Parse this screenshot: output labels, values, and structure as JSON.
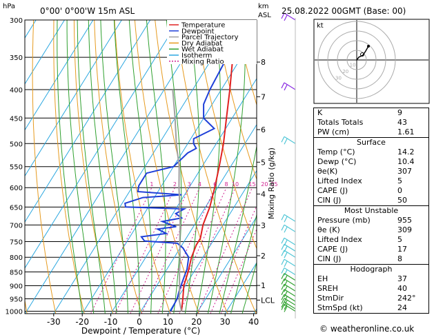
{
  "header": {
    "location": "0°00' 0°00'W 15m ASL",
    "hpa_unit": "hPa",
    "km_unit": "km",
    "asl_unit": "ASL",
    "datetime": "25.08.2022 00GMT (Base: 00)"
  },
  "chart_data": {
    "type": "line",
    "title": "",
    "xlabel": "Dewpoint / Temperature (°C)",
    "ylabel": "Mixing Ratio (g/kg)",
    "x_ticks": [
      "-30",
      "-20",
      "-10",
      "0",
      "10",
      "20",
      "30",
      "40"
    ],
    "xlim": [
      -35,
      40
    ],
    "pressure_levels": [
      "300",
      "350",
      "400",
      "450",
      "500",
      "550",
      "600",
      "650",
      "700",
      "750",
      "800",
      "850",
      "900",
      "950",
      "1000"
    ],
    "ylim_hpa": [
      300,
      1010
    ],
    "km_ticks": [
      {
        "label": "8",
        "p": 357
      },
      {
        "label": "7",
        "p": 412
      },
      {
        "label": "6",
        "p": 472
      },
      {
        "label": "5",
        "p": 540
      },
      {
        "label": "4",
        "p": 616
      },
      {
        "label": "3",
        "p": 701
      },
      {
        "label": "2",
        "p": 795
      },
      {
        "label": "1",
        "p": 899
      },
      {
        "label": "LCL",
        "p": 955
      }
    ],
    "mixing_ratio_labels": [
      "1",
      "2",
      "3",
      "4",
      "6",
      "8",
      "10",
      "15",
      "20",
      "25"
    ],
    "legend": [
      {
        "name": "Temperature",
        "color": "#e02020"
      },
      {
        "name": "Dewpoint",
        "color": "#1e3fd8"
      },
      {
        "name": "Parcel Trajectory",
        "color": "#a0a0a0"
      },
      {
        "name": "Dry Adiabat",
        "color": "#e69a1e"
      },
      {
        "name": "Wet Adiabat",
        "color": "#2ea02e"
      },
      {
        "name": "Isotherm",
        "color": "#2aa7e0"
      },
      {
        "name": "Mixing Ratio",
        "color": "#d02090"
      }
    ],
    "series": [
      {
        "name": "Temperature",
        "color": "#e02020",
        "points": [
          [
            14.2,
            1000
          ],
          [
            12,
            950
          ],
          [
            9.5,
            900
          ],
          [
            8,
            850
          ],
          [
            6,
            800
          ],
          [
            5,
            760
          ],
          [
            5,
            740
          ],
          [
            3,
            700
          ],
          [
            1.5,
            650
          ],
          [
            -1,
            600
          ],
          [
            -4,
            550
          ],
          [
            -7.5,
            500
          ],
          [
            -12,
            450
          ],
          [
            -17,
            400
          ],
          [
            -23,
            350
          ],
          [
            -30,
            300
          ]
        ]
      },
      {
        "name": "Dewpoint",
        "color": "#1e3fd8",
        "points": [
          [
            10.4,
            1000
          ],
          [
            10,
            950
          ],
          [
            9,
            920
          ],
          [
            8,
            880
          ],
          [
            7,
            840
          ],
          [
            5,
            800
          ],
          [
            1,
            770
          ],
          [
            -2,
            755
          ],
          [
            -14,
            748
          ],
          [
            -16,
            735
          ],
          [
            -8,
            725
          ],
          [
            -12,
            712
          ],
          [
            -6,
            705
          ],
          [
            -12,
            690
          ],
          [
            -6,
            680
          ],
          [
            -9,
            668
          ],
          [
            -7,
            655
          ],
          [
            -28,
            650
          ],
          [
            -29,
            640
          ],
          [
            -24,
            625
          ],
          [
            -11,
            618
          ],
          [
            -27,
            610
          ],
          [
            -28,
            595
          ],
          [
            -28,
            565
          ],
          [
            -20,
            550
          ],
          [
            -18,
            520
          ],
          [
            -16,
            510
          ],
          [
            -18,
            500
          ],
          [
            -19,
            490
          ],
          [
            -14,
            470
          ],
          [
            -20,
            450
          ],
          [
            -23,
            425
          ],
          [
            -24,
            400
          ],
          [
            -25,
            350
          ],
          [
            -24,
            320
          ],
          [
            -26,
            300
          ]
        ]
      },
      {
        "name": "Parcel Trajectory",
        "color": "#a0a0a0",
        "points": [
          [
            14.2,
            1000
          ],
          [
            11,
            955
          ],
          [
            8,
            900
          ],
          [
            5,
            850
          ],
          [
            2,
            800
          ],
          [
            -1.5,
            750
          ],
          [
            -5,
            700
          ],
          [
            -9,
            650
          ],
          [
            -13.5,
            600
          ],
          [
            -18,
            550
          ],
          [
            -24,
            500
          ],
          [
            -30,
            450
          ],
          [
            -37,
            400
          ]
        ]
      }
    ]
  },
  "hodograph": {
    "label": "kt",
    "rings": [
      "10",
      "20",
      "30"
    ]
  },
  "indices": {
    "rows": [
      {
        "label": "K",
        "value": "9"
      },
      {
        "label": "Totals Totals",
        "value": "43"
      },
      {
        "label": "PW (cm)",
        "value": "1.61"
      }
    ]
  },
  "surface": {
    "title": "Surface",
    "rows": [
      {
        "label": "Temp (°C)",
        "value": "14.2"
      },
      {
        "label": "Dewp (°C)",
        "value": "10.4"
      },
      {
        "label": "θe(K)",
        "value": "307"
      },
      {
        "label": "Lifted Index",
        "value": "5"
      },
      {
        "label": "CAPE (J)",
        "value": "0"
      },
      {
        "label": "CIN (J)",
        "value": "50"
      }
    ]
  },
  "most_unstable": {
    "title": "Most Unstable",
    "rows": [
      {
        "label": "Pressure (mb)",
        "value": "955"
      },
      {
        "label": "θe (K)",
        "value": "309"
      },
      {
        "label": "Lifted Index",
        "value": "5"
      },
      {
        "label": "CAPE (J)",
        "value": "17"
      },
      {
        "label": "CIN (J)",
        "value": "8"
      }
    ]
  },
  "hodograph_table": {
    "title": "Hodograph",
    "rows": [
      {
        "label": "EH",
        "value": "37"
      },
      {
        "label": "SREH",
        "value": "40"
      },
      {
        "label": "StmDir",
        "value": "242°"
      },
      {
        "label": "StmSpd (kt)",
        "value": "24"
      }
    ]
  },
  "footer": {
    "credit": "© weatheronline.co.uk"
  }
}
